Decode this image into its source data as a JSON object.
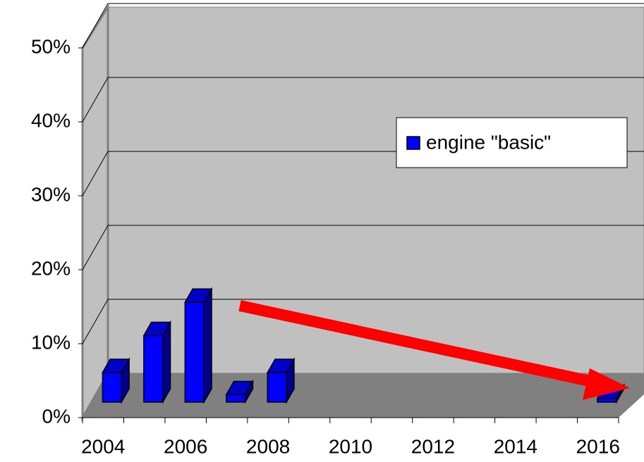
{
  "chart_data": {
    "type": "bar3d",
    "categories": [
      "2004",
      null,
      "2006",
      null,
      "2008",
      null,
      "2010",
      null,
      "2012",
      null,
      "2014",
      null,
      "2016"
    ],
    "series": [
      {
        "name": "engine \"basic\"",
        "color": "#0000ff",
        "values": [
          4,
          9,
          13.5,
          1,
          4,
          null,
          null,
          null,
          null,
          null,
          null,
          null,
          0.5
        ]
      }
    ],
    "ylim": [
      0,
      50
    ],
    "yticks": [
      {
        "value": 0,
        "label": "0%"
      },
      {
        "value": 10,
        "label": "10%"
      },
      {
        "value": 20,
        "label": "20%"
      },
      {
        "value": 30,
        "label": "30%"
      },
      {
        "value": 40,
        "label": "40%"
      },
      {
        "value": 50,
        "label": "50%"
      }
    ],
    "grid": true,
    "legend": "right"
  }
}
